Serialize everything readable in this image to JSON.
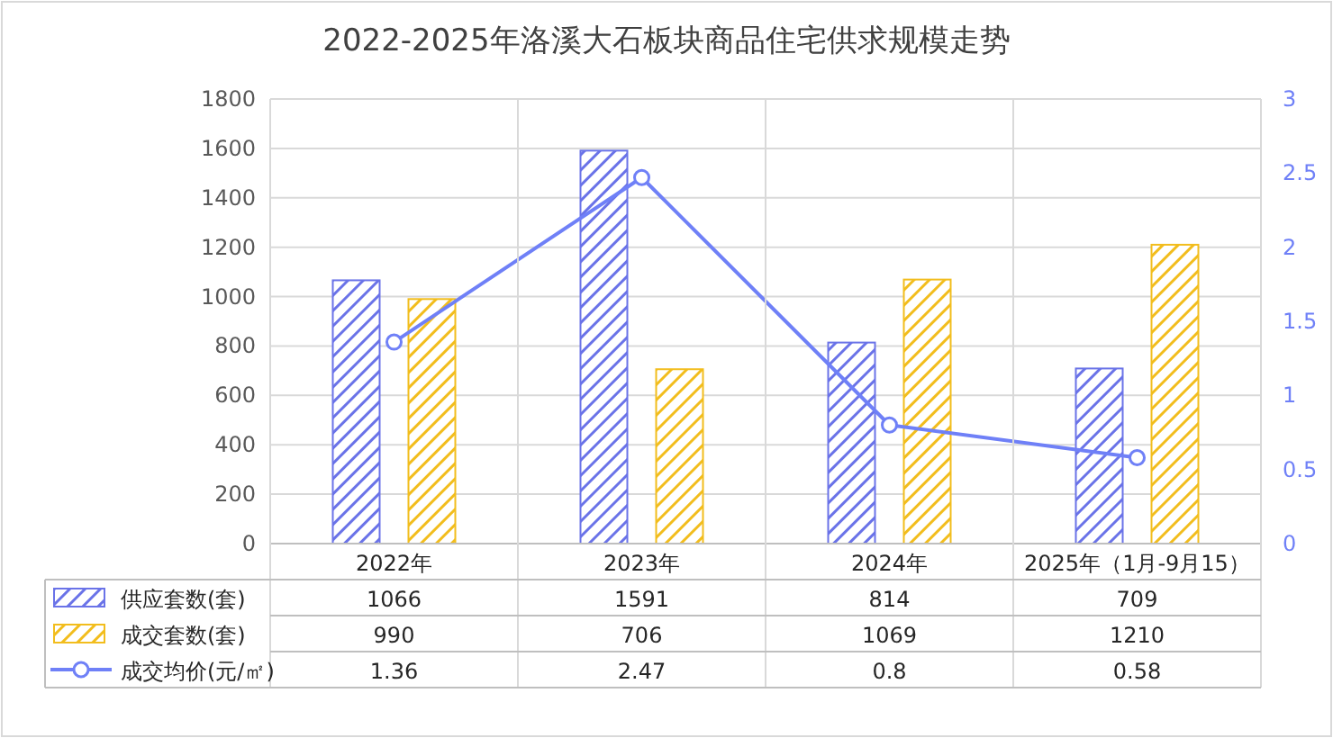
{
  "chart_data": {
    "type": "bar",
    "title": "2022-2025年洛溪大石板块商品住宅供求规模走势",
    "categories": [
      "2022年",
      "2023年",
      "2024年",
      "2025年（1月-9月15）"
    ],
    "series": [
      {
        "name": "供应套数(套)",
        "color": "#6a73e8",
        "values": [
          1066,
          1591,
          814,
          709
        ]
      },
      {
        "name": "成交套数(套)",
        "color": "#f2bd1d",
        "values": [
          990,
          706,
          1069,
          1210
        ]
      },
      {
        "name": "成交均价(元/㎡)",
        "type": "line",
        "axis": "y2",
        "marker": "circle",
        "color": "#6f80f7",
        "values": [
          1.36,
          2.47,
          0.8,
          0.58
        ]
      }
    ],
    "ylim": [
      0,
      1800
    ],
    "yticks": [
      0,
      200,
      400,
      600,
      800,
      1000,
      1200,
      1400,
      1600,
      1800
    ],
    "y2lim": [
      0,
      3
    ],
    "y2ticks": [
      0,
      0.5,
      1,
      1.5,
      2,
      2.5,
      3
    ],
    "grid": "y",
    "legend": "bottom",
    "data_labels": true
  }
}
